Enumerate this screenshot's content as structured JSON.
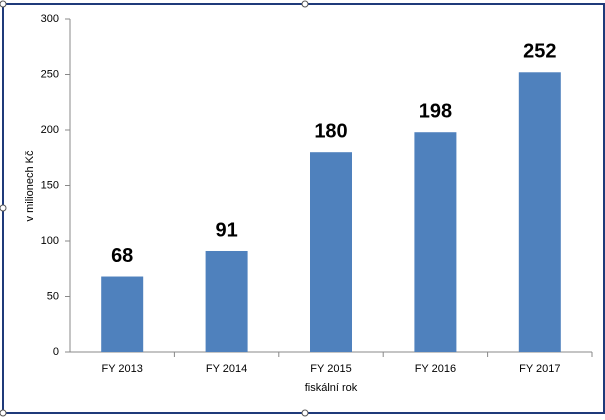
{
  "chart_data": {
    "type": "bar",
    "categories": [
      "FY 2013",
      "FY 2014",
      "FY 2015",
      "FY 2016",
      "FY 2017"
    ],
    "values": [
      68,
      91,
      180,
      198,
      252
    ],
    "color": "#4f81bd",
    "ylim": [
      0,
      300
    ],
    "yticks": [
      0,
      50,
      100,
      150,
      200,
      250,
      300
    ],
    "grid": false,
    "ylabel": "v milionech Kč",
    "xlabel": "fiskální rok"
  }
}
